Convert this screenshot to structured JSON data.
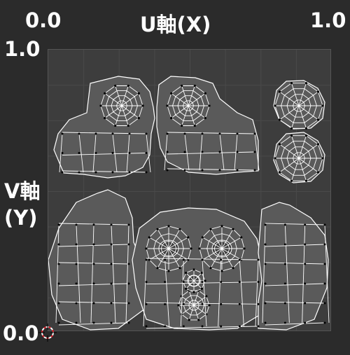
{
  "axes": {
    "x_title": "U軸(X)",
    "x_min_label": "0.0",
    "x_max_label": "1.0",
    "y_title": "V軸\n(Y)",
    "y_max_label": "1.0",
    "y_min_label": "0.0"
  },
  "colors": {
    "background": "#2b2b2b",
    "uv_area": "#3d3d3d",
    "grid": "#4a4a4a",
    "face_fill": "#5a5a5a",
    "edge": "#ffffff",
    "vertex": "#000000"
  },
  "icons": {
    "cursor": "2d-cursor-icon"
  }
}
